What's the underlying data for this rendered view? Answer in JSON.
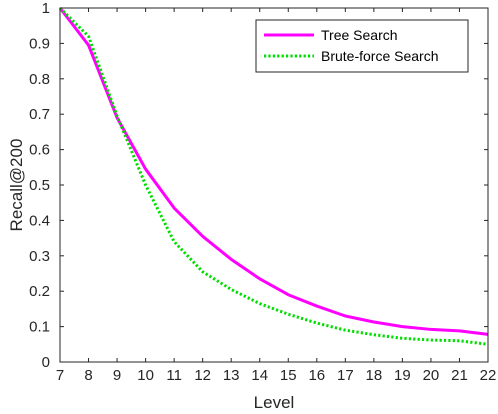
{
  "chart_data": {
    "type": "line",
    "xlabel": "Level",
    "ylabel": "Recall@200",
    "xlim": [
      7,
      22
    ],
    "ylim": [
      0,
      1
    ],
    "x_ticks": [
      "7",
      "8",
      "9",
      "10",
      "11",
      "12",
      "13",
      "14",
      "15",
      "16",
      "17",
      "18",
      "19",
      "20",
      "21",
      "22"
    ],
    "y_ticks": [
      "0",
      "0.1",
      "0.2",
      "0.3",
      "0.4",
      "0.5",
      "0.6",
      "0.7",
      "0.8",
      "0.9",
      "1"
    ],
    "grid": false,
    "legend_position": "top-right",
    "x": [
      7,
      8,
      9,
      10,
      11,
      12,
      13,
      14,
      15,
      16,
      17,
      18,
      19,
      20,
      21,
      22
    ],
    "series": [
      {
        "name": "Tree Search",
        "color": "#ff00ff",
        "style": "solid",
        "values": [
          1.0,
          0.895,
          0.69,
          0.545,
          0.435,
          0.355,
          0.29,
          0.235,
          0.19,
          0.158,
          0.13,
          0.113,
          0.1,
          0.092,
          0.088,
          0.078
        ]
      },
      {
        "name": "Brute-force Search",
        "color": "#00dd00",
        "style": "dotted",
        "values": [
          1.0,
          0.92,
          0.695,
          0.5,
          0.34,
          0.255,
          0.205,
          0.165,
          0.135,
          0.11,
          0.09,
          0.077,
          0.067,
          0.062,
          0.06,
          0.05
        ]
      }
    ]
  }
}
